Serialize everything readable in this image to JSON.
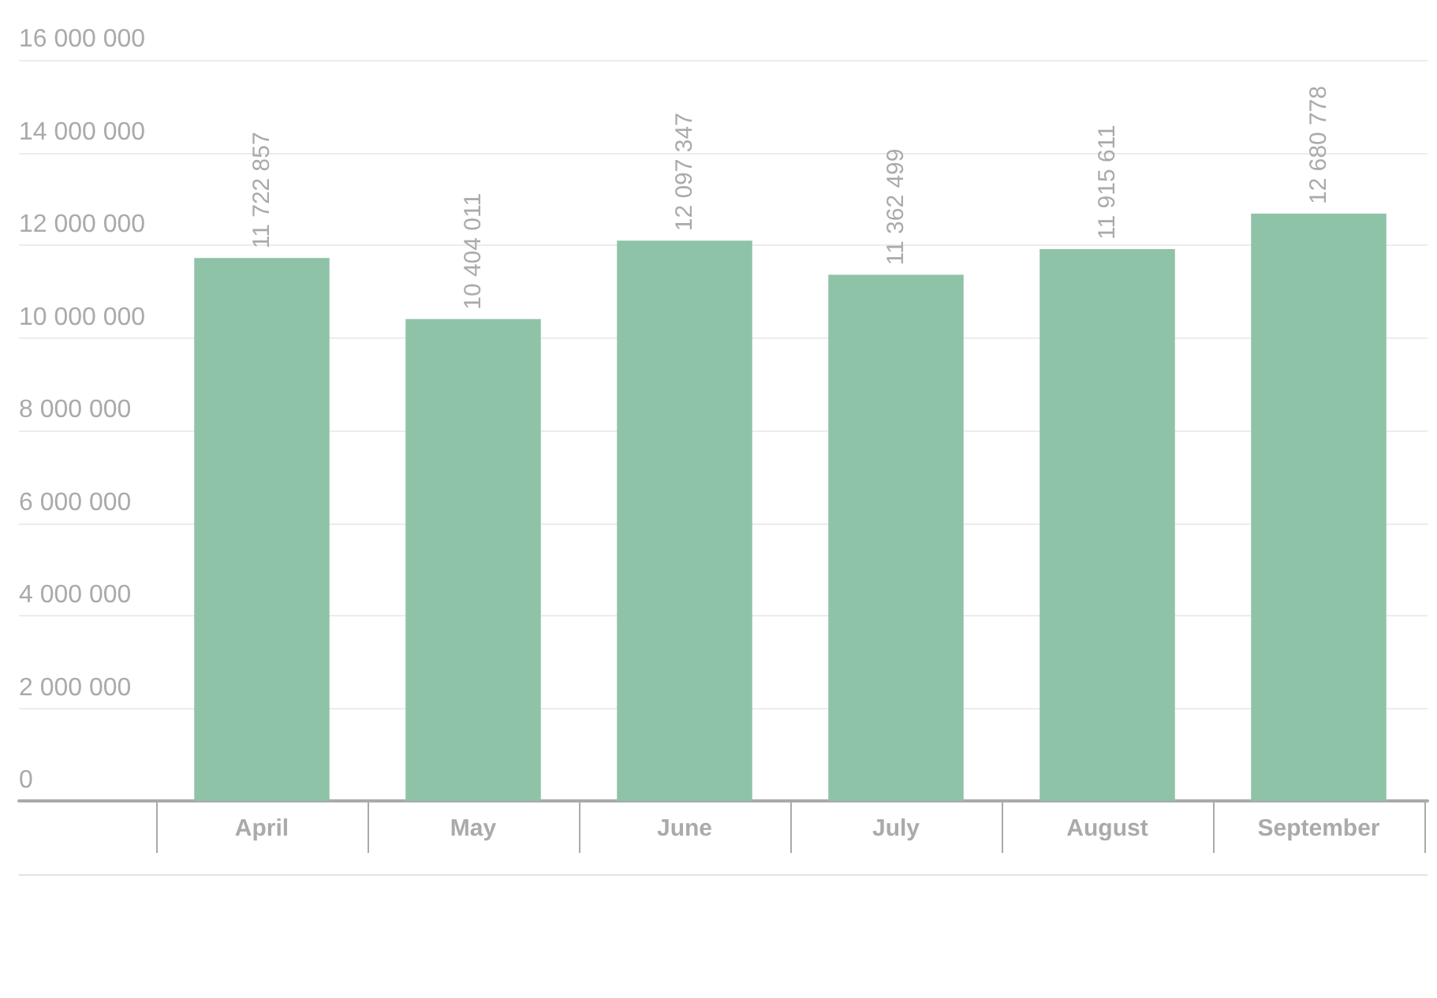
{
  "chart_data": {
    "type": "bar",
    "categories": [
      "April",
      "May",
      "June",
      "July",
      "August",
      "September"
    ],
    "values": [
      11722857,
      10404011,
      12097347,
      11362499,
      11915611,
      12680778
    ],
    "value_labels": [
      "11 722 857",
      "10 404 011",
      "12 097 347",
      "11 362 499",
      "11 915 611",
      "12 680 778"
    ],
    "color": "#8ec3a7",
    "ylim": [
      0,
      16000000
    ],
    "yticks": [
      0,
      {
        "value": 2000000,
        "label": "2 000 000"
      },
      {
        "value": 4000000,
        "label": "4 000 000"
      },
      {
        "value": 6000000,
        "label": "6 000 000"
      },
      {
        "value": 8000000,
        "label": "8 000 000"
      },
      {
        "value": 10000000,
        "label": "10 000 000"
      },
      {
        "value": 12000000,
        "label": "12 000 000"
      },
      {
        "value": 14000000,
        "label": "14 000 000"
      },
      {
        "value": 16000000,
        "label": "16 000 000"
      }
    ],
    "grid": "y"
  }
}
